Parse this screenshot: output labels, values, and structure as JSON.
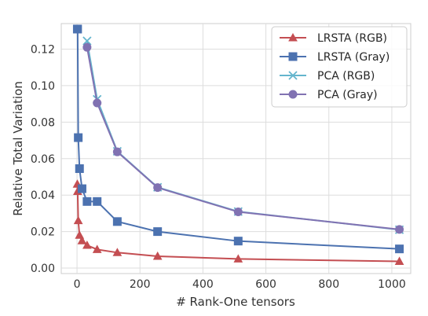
{
  "chart_data": {
    "type": "line",
    "title": "",
    "xlabel": "# Rank-One tensors",
    "ylabel": "Relative Total Variation",
    "xlim": [
      -50,
      1060
    ],
    "ylim": [
      -0.003,
      0.134
    ],
    "x_ticks": [
      0,
      200,
      400,
      600,
      800,
      1000
    ],
    "x_tick_labels": [
      "0",
      "200",
      "400",
      "600",
      "800",
      "1000"
    ],
    "y_ticks": [
      0.0,
      0.02,
      0.04,
      0.06,
      0.08,
      0.1,
      0.12
    ],
    "y_tick_labels": [
      "0.00",
      "0.02",
      "0.04",
      "0.06",
      "0.08",
      "0.10",
      "0.12"
    ],
    "grid": true,
    "legend_position": "top-right",
    "series": [
      {
        "name": "LRSTA (RGB)",
        "color": "#c44e52",
        "marker": "triangle",
        "x": [
          1,
          2,
          4,
          8,
          16,
          32,
          64,
          128,
          256,
          512,
          1024
        ],
        "y": [
          0.046,
          0.042,
          0.026,
          0.018,
          0.015,
          0.0125,
          0.0102,
          0.0085,
          0.0065,
          0.005,
          0.0037
        ]
      },
      {
        "name": "LRSTA (Gray)",
        "color": "#4c72b0",
        "marker": "square",
        "x": [
          1,
          2,
          4,
          8,
          16,
          32,
          64,
          128,
          256,
          512,
          1024
        ],
        "y": [
          0.131,
          0.131,
          0.0715,
          0.0545,
          0.0435,
          0.0365,
          0.0365,
          0.0255,
          0.02,
          0.0148,
          0.0105
        ]
      },
      {
        "name": "PCA (RGB)",
        "color": "#64b5cd",
        "marker": "x",
        "x": [
          32,
          64,
          128,
          256,
          512,
          1024
        ],
        "y": [
          0.1245,
          0.0925,
          0.064,
          0.0443,
          0.031,
          0.021
        ]
      },
      {
        "name": "PCA (Gray)",
        "color": "#8172b2",
        "marker": "circle",
        "x": [
          32,
          64,
          128,
          256,
          512,
          1024
        ],
        "y": [
          0.121,
          0.0905,
          0.0637,
          0.0441,
          0.0308,
          0.0212
        ]
      }
    ]
  }
}
